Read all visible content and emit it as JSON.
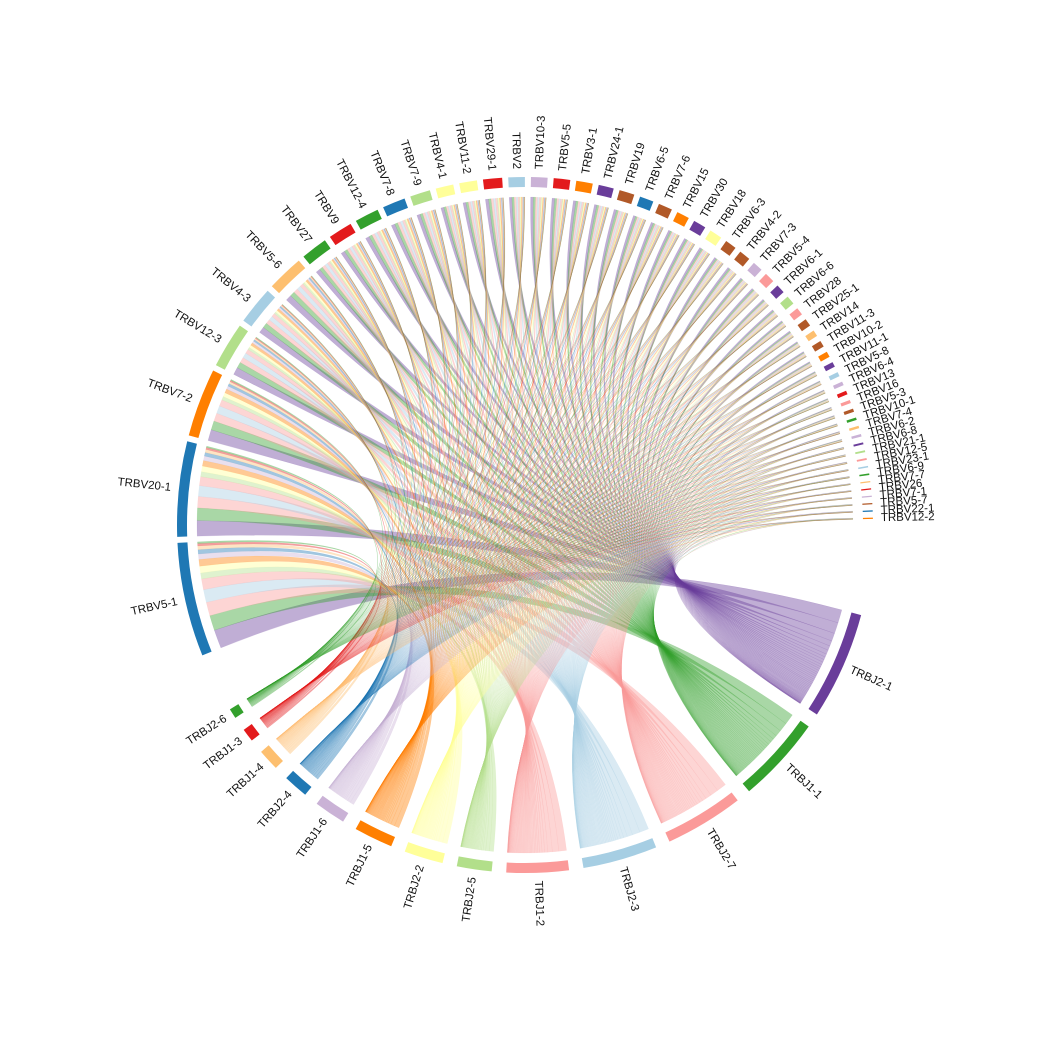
{
  "chart_data": {
    "type": "chord",
    "title": "",
    "j_segments": [
      {
        "name": "TRBJ2-1",
        "value": 13,
        "color": "#6a3d9a"
      },
      {
        "name": "TRBJ1-1",
        "value": 10.5,
        "color": "#33a02c"
      },
      {
        "name": "TRBJ2-7",
        "value": 9.5,
        "color": "#fb9a99"
      },
      {
        "name": "TRBJ2-3",
        "value": 9,
        "color": "#a6cee3"
      },
      {
        "name": "TRBJ1-2",
        "value": 7.5,
        "color": "#fb9a99"
      },
      {
        "name": "TRBJ2-5",
        "value": 4.2,
        "color": "#b2df8a"
      },
      {
        "name": "TRBJ2-2",
        "value": 4.7,
        "color": "#ffff99"
      },
      {
        "name": "TRBJ1-5",
        "value": 4.7,
        "color": "#ff7f00"
      },
      {
        "name": "TRBJ1-6",
        "value": 3.8,
        "color": "#cab2d6"
      },
      {
        "name": "TRBJ2-4",
        "value": 3.0,
        "color": "#1f78b4"
      },
      {
        "name": "TRBJ1-4",
        "value": 2.6,
        "color": "#fdbf6f"
      },
      {
        "name": "TRBJ1-3",
        "value": 1.6,
        "color": "#e31a1c"
      },
      {
        "name": "TRBJ2-6",
        "value": 1.2,
        "color": "#33a02c"
      }
    ],
    "v_segments": [
      {
        "name": "TRBV5-1",
        "value": 9.0,
        "color": "#1f78b4"
      },
      {
        "name": "TRBV20-1",
        "value": 7.5,
        "color": "#1f78b4"
      },
      {
        "name": "TRBV7-2",
        "value": 5.4,
        "color": "#ff7f00"
      },
      {
        "name": "TRBV12-3",
        "value": 3.6,
        "color": "#b2df8a"
      },
      {
        "name": "TRBV4-3",
        "value": 3.0,
        "color": "#a6cee3"
      },
      {
        "name": "TRBV5-6",
        "value": 2.9,
        "color": "#fdbf6f"
      },
      {
        "name": "TRBV27",
        "value": 2.1,
        "color": "#33a02c"
      },
      {
        "name": "TRBV9",
        "value": 1.9,
        "color": "#e31a1c"
      },
      {
        "name": "TRBV12-4",
        "value": 1.9,
        "color": "#33a02c"
      },
      {
        "name": "TRBV7-8",
        "value": 1.8,
        "color": "#1f78b4"
      },
      {
        "name": "TRBV7-9",
        "value": 1.6,
        "color": "#b2df8a"
      },
      {
        "name": "TRBV4-1",
        "value": 1.4,
        "color": "#ffff99"
      },
      {
        "name": "TRBV11-2",
        "value": 1.4,
        "color": "#ffff99"
      },
      {
        "name": "TRBV29-1",
        "value": 1.5,
        "color": "#e31a1c"
      },
      {
        "name": "TRBV2",
        "value": 1.3,
        "color": "#a6cee3"
      },
      {
        "name": "TRBV10-3",
        "value": 1.3,
        "color": "#cab2d6"
      },
      {
        "name": "TRBV5-5",
        "value": 1.3,
        "color": "#e31a1c"
      },
      {
        "name": "TRBV3-1",
        "value": 1.3,
        "color": "#ff7f00"
      },
      {
        "name": "TRBV24-1",
        "value": 1.2,
        "color": "#6a3d9a"
      },
      {
        "name": "TRBV19",
        "value": 1.2,
        "color": "#b15928"
      },
      {
        "name": "TRBV6-5",
        "value": 1.1,
        "color": "#1f78b4"
      },
      {
        "name": "TRBV7-6",
        "value": 1.1,
        "color": "#b15928"
      },
      {
        "name": "TRBV15",
        "value": 1.0,
        "color": "#ff7f00"
      },
      {
        "name": "TRBV30",
        "value": 1.0,
        "color": "#6a3d9a"
      },
      {
        "name": "TRBV18",
        "value": 1.0,
        "color": "#ffff99"
      },
      {
        "name": "TRBV6-3",
        "value": 0.9,
        "color": "#b15928"
      },
      {
        "name": "TRBV4-2",
        "value": 0.9,
        "color": "#b15928"
      },
      {
        "name": "TRBV7-3",
        "value": 0.8,
        "color": "#cab2d6"
      },
      {
        "name": "TRBV5-4",
        "value": 0.8,
        "color": "#fb9a99"
      },
      {
        "name": "TRBV6-1",
        "value": 0.7,
        "color": "#6a3d9a"
      },
      {
        "name": "TRBV6-6",
        "value": 0.7,
        "color": "#b2df8a"
      },
      {
        "name": "TRBV28",
        "value": 0.6,
        "color": "#fb9a99"
      },
      {
        "name": "TRBV25-1",
        "value": 0.6,
        "color": "#b15928"
      },
      {
        "name": "TRBV14",
        "value": 0.5,
        "color": "#fdbf6f"
      },
      {
        "name": "TRBV11-3",
        "value": 0.5,
        "color": "#b15928"
      },
      {
        "name": "TRBV10-2",
        "value": 0.45,
        "color": "#ff7f00"
      },
      {
        "name": "TRBV11-1",
        "value": 0.4,
        "color": "#6a3d9a"
      },
      {
        "name": "TRBV5-8",
        "value": 0.35,
        "color": "#a6cee3"
      },
      {
        "name": "TRBV6-4",
        "value": 0.3,
        "color": "#cab2d6"
      },
      {
        "name": "TRBV13",
        "value": 0.3,
        "color": "#e31a1c"
      },
      {
        "name": "TRBV16",
        "value": 0.25,
        "color": "#fb9a99"
      },
      {
        "name": "TRBV5-3",
        "value": 0.25,
        "color": "#b15928"
      },
      {
        "name": "TRBV10-1",
        "value": 0.2,
        "color": "#33a02c"
      },
      {
        "name": "TRBV7-4",
        "value": 0.2,
        "color": "#fdbf6f"
      },
      {
        "name": "TRBV6-2",
        "value": 0.2,
        "color": "#cab2d6"
      },
      {
        "name": "TRBV6-8",
        "value": 0.15,
        "color": "#6a3d9a"
      },
      {
        "name": "TRBV21-1",
        "value": 0.15,
        "color": "#b2df8a"
      },
      {
        "name": "TRBV12-5",
        "value": 0.15,
        "color": "#fb9a99"
      },
      {
        "name": "TRBV23-1",
        "value": 0.12,
        "color": "#a6cee3"
      },
      {
        "name": "TRBV6-9",
        "value": 0.12,
        "color": "#33a02c"
      },
      {
        "name": "TRBV7-7",
        "value": 0.1,
        "color": "#fdbf6f"
      },
      {
        "name": "TRBV26",
        "value": 0.1,
        "color": "#e31a1c"
      },
      {
        "name": "TRBV7-1",
        "value": 0.1,
        "color": "#cab2d6"
      },
      {
        "name": "TRBV5-7",
        "value": 0.1,
        "color": "#b15928"
      },
      {
        "name": "TRBV22-1",
        "value": 0.1,
        "color": "#1f78b4"
      },
      {
        "name": "TRBV12-2",
        "value": 0.1,
        "color": "#ff7f00"
      }
    ]
  }
}
